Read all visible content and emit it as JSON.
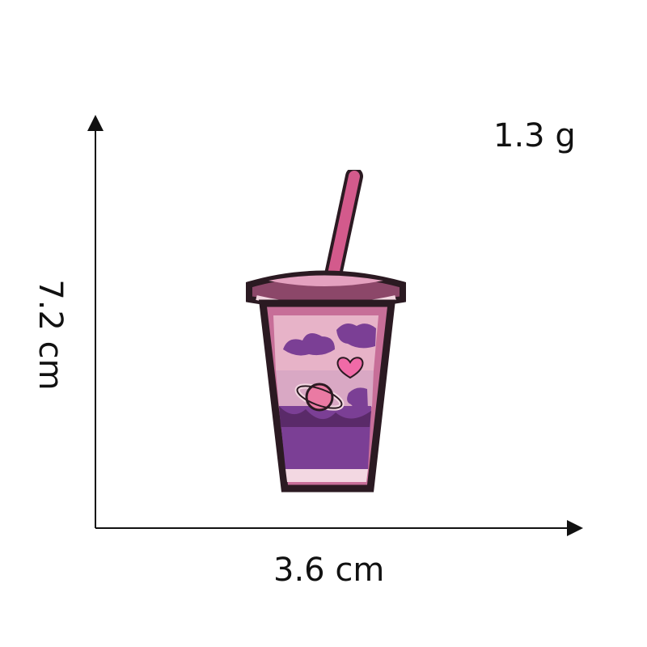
{
  "dimensions": {
    "weight": "1.3 g",
    "height": "7.2 cm",
    "width": "3.6 cm"
  },
  "colors": {
    "outline": "#2b1a22",
    "straw": "#d35a8c",
    "cup_pink": "#c76e98",
    "cup_light": "#e7b3c8",
    "cup_purple": "#7b3f95",
    "cup_dark": "#5a2a69",
    "rim": "#f3d8e2",
    "heart": "#f06aa7"
  },
  "icons": {
    "axes": "dimension-axes-icon",
    "product": "embroidered-drink-cup-icon"
  }
}
